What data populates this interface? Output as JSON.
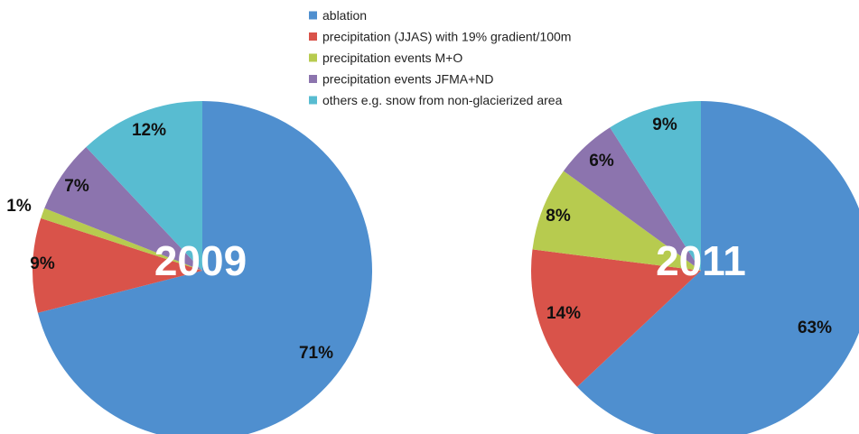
{
  "chart_data": [
    {
      "type": "pie",
      "title": "2009",
      "categories": [
        "ablation",
        "precipitation (JJAS) with 19% gradient/100m",
        "precipitation events M+O",
        "precipitation events JFMA+ND",
        "others e.g. snow from non-glacierized area"
      ],
      "values": [
        71,
        9,
        1,
        7,
        12
      ],
      "value_labels": [
        "71%",
        "9%",
        "1%",
        "7%",
        "12%"
      ]
    },
    {
      "type": "pie",
      "title": "2011",
      "categories": [
        "ablation",
        "precipitation (JJAS) with 19% gradient/100m",
        "precipitation events M+O",
        "precipitation events JFMA+ND",
        "others e.g. snow from non-glacierized area"
      ],
      "values": [
        63,
        14,
        8,
        6,
        9
      ],
      "value_labels": [
        "63%",
        "14%",
        "8%",
        "6%",
        "9%"
      ]
    }
  ],
  "legend": {
    "placement": "top-center",
    "items": [
      {
        "label": "ablation",
        "color": "#4F8FCF"
      },
      {
        "label": "precipitation (JJAS) with 19% gradient/100m",
        "color": "#D9534A"
      },
      {
        "label": "precipitation events M+O",
        "color": "#B7CB4F"
      },
      {
        "label": "precipitation events JFMA+ND",
        "color": "#8C74AE"
      },
      {
        "label": "others e.g. snow from non-glacierized area",
        "color": "#58BCD1"
      }
    ]
  },
  "colors": {
    "ablation": "#4F8FCF",
    "precip_jjas": "#D9534A",
    "precip_mo": "#B7CB4F",
    "precip_jfmand": "#8C74AE",
    "others": "#58BCD1"
  }
}
